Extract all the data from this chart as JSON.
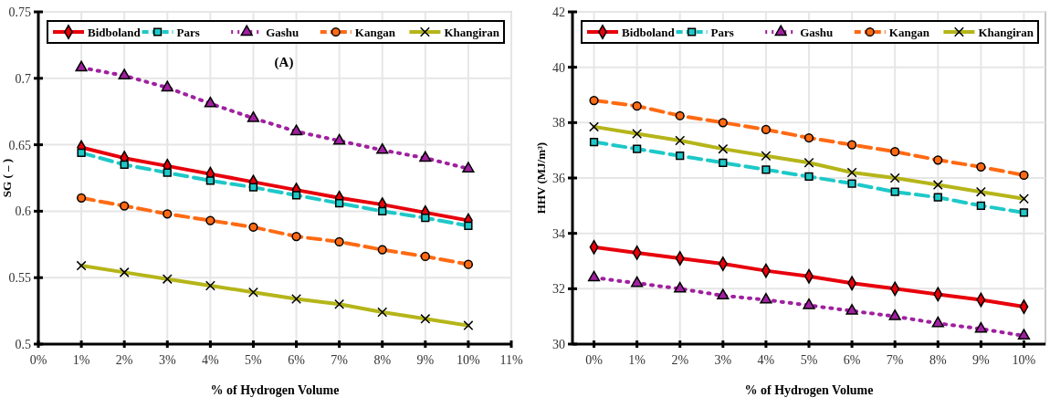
{
  "chart_data": [
    {
      "type": "line",
      "xlabel": "% of Hydrogen Volume",
      "ylabel": "SG ( – )",
      "annotations": [
        "(A)"
      ],
      "x": [
        1,
        2,
        3,
        4,
        5,
        6,
        7,
        8,
        9,
        10
      ],
      "xlim": [
        0,
        11
      ],
      "xticks": [
        {
          "value": 0,
          "label": "0%"
        },
        {
          "value": 1,
          "label": "1%"
        },
        {
          "value": 2,
          "label": "2%"
        },
        {
          "value": 3,
          "label": "3%"
        },
        {
          "value": 4,
          "label": "4%"
        },
        {
          "value": 5,
          "label": "5%"
        },
        {
          "value": 6,
          "label": "6%"
        },
        {
          "value": 7,
          "label": "7%"
        },
        {
          "value": 8,
          "label": "8%"
        },
        {
          "value": 9,
          "label": "9%"
        },
        {
          "value": 10,
          "label": "10%"
        },
        {
          "value": 11,
          "label": "11%"
        }
      ],
      "ylim": [
        0.5,
        0.75
      ],
      "yticks": [
        0.5,
        0.55,
        0.6,
        0.65,
        0.7,
        0.75
      ],
      "grid": true,
      "legend": "top",
      "series": [
        {
          "name": "Bidboland",
          "color": "#e8000b",
          "marker": "diamond",
          "line_style": "solid",
          "values": [
            0.648,
            0.64,
            0.634,
            0.628,
            0.622,
            0.616,
            0.61,
            0.605,
            0.599,
            0.593
          ]
        },
        {
          "name": "Pars",
          "color": "#1ec8c8",
          "marker": "square",
          "line_style": "dashed",
          "values": [
            0.644,
            0.635,
            0.629,
            0.623,
            0.618,
            0.612,
            0.606,
            0.6,
            0.595,
            0.589
          ]
        },
        {
          "name": "Gashu",
          "color": "#a020a0",
          "marker": "triangle",
          "line_style": "dotted",
          "values": [
            0.708,
            0.702,
            0.693,
            0.681,
            0.67,
            0.66,
            0.653,
            0.646,
            0.64,
            0.632
          ]
        },
        {
          "name": "Kangan",
          "color": "#ff6a13",
          "marker": "circle",
          "line_style": "dashed",
          "values": [
            0.61,
            0.604,
            0.598,
            0.593,
            0.588,
            0.581,
            0.577,
            0.571,
            0.566,
            0.56
          ]
        },
        {
          "name": "Khangiran",
          "color": "#b5b51a",
          "marker": "cross",
          "line_style": "solid",
          "values": [
            0.559,
            0.554,
            0.549,
            0.544,
            0.539,
            0.534,
            0.53,
            0.524,
            0.519,
            0.514
          ]
        }
      ]
    },
    {
      "type": "line",
      "xlabel": "% of Hydrogen Volume",
      "ylabel": "HHV (MJ/m³)",
      "categories": [
        "0%",
        "1%",
        "2%",
        "3%",
        "4%",
        "5%",
        "6%",
        "7%",
        "8%",
        "9%",
        "10%"
      ],
      "ylim": [
        30,
        42
      ],
      "yticks": [
        30,
        32,
        34,
        36,
        38,
        40,
        42
      ],
      "grid": true,
      "legend": "top",
      "series": [
        {
          "name": "Bidboland",
          "color": "#e8000b",
          "marker": "diamond",
          "line_style": "solid",
          "values": [
            33.5,
            33.3,
            33.1,
            32.9,
            32.65,
            32.45,
            32.2,
            32.0,
            31.8,
            31.6,
            31.35
          ]
        },
        {
          "name": "Pars",
          "color": "#1ec8c8",
          "marker": "square",
          "line_style": "dashed",
          "values": [
            37.3,
            37.05,
            36.8,
            36.55,
            36.3,
            36.05,
            35.8,
            35.5,
            35.3,
            35.0,
            34.75
          ]
        },
        {
          "name": "Gashu",
          "color": "#a020a0",
          "marker": "triangle",
          "line_style": "dotted",
          "values": [
            32.4,
            32.2,
            32.0,
            31.75,
            31.6,
            31.4,
            31.2,
            31.0,
            30.75,
            30.55,
            30.3
          ]
        },
        {
          "name": "Kangan",
          "color": "#ff6a13",
          "marker": "circle",
          "line_style": "dashed",
          "values": [
            38.8,
            38.6,
            38.25,
            38.0,
            37.75,
            37.45,
            37.2,
            36.95,
            36.65,
            36.4,
            36.1
          ]
        },
        {
          "name": "Khangiran",
          "color": "#b5b51a",
          "marker": "cross",
          "line_style": "solid",
          "values": [
            37.85,
            37.6,
            37.35,
            37.05,
            36.8,
            36.55,
            36.2,
            36.0,
            35.75,
            35.5,
            35.25
          ]
        }
      ]
    }
  ]
}
